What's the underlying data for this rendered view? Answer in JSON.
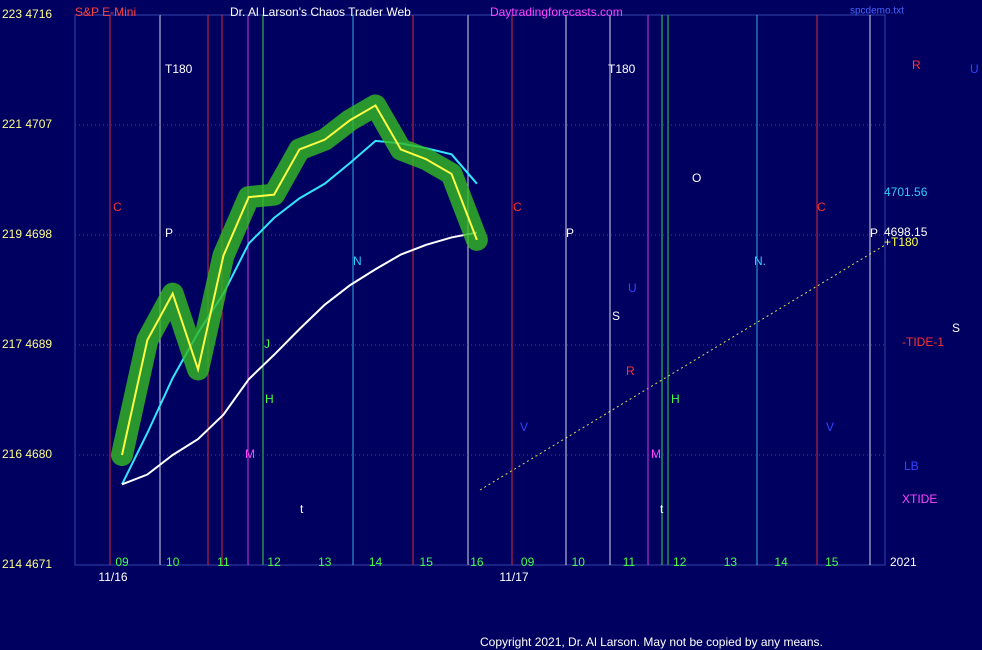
{
  "chart_data": {
    "type": "line",
    "symbol": "S&P E-Mini",
    "title": "Dr. Al Larson's Chaos Trader Web",
    "site": "Daytradingforecasts.com",
    "file": "spcdemo.txt",
    "copyright": "Copyright 2021, Dr. Al Larson. May not be copied by any means.",
    "dates": [
      "11/16",
      "11/17"
    ],
    "categories": [
      "09",
      null,
      "10",
      null,
      "11",
      null,
      "12",
      null,
      "13",
      null,
      "14",
      null,
      "15",
      null,
      "16",
      null,
      "09",
      null,
      "10",
      null,
      "11",
      null,
      "12",
      null,
      "13",
      null,
      "14",
      null,
      "15"
    ],
    "series": [
      {
        "color": "#ffff44",
        "values": [
          4680,
          4689.4,
          4693.2,
          4687,
          4696.3,
          4701.1,
          4701.3,
          4705,
          4705.8,
          4707.4,
          4708.6,
          4705,
          4704.2,
          4703,
          4697.6,
          null,
          null,
          null,
          null,
          null,
          null,
          null,
          null,
          null,
          null,
          null,
          null,
          null,
          null
        ]
      },
      {
        "color": "#33e6ff",
        "values": [
          4677.6,
          4681.8,
          4686.3,
          4690,
          4693.2,
          4697.3,
          4699.4,
          4701,
          4702.2,
          4703.9,
          4705.7,
          4705.5,
          4705.1,
          4704.6,
          4702.2,
          null,
          null,
          null,
          null,
          null,
          null,
          null,
          null,
          null,
          null,
          null,
          null,
          null,
          null
        ]
      },
      {
        "color": "#ffffff",
        "values": [
          4677.6,
          4678.4,
          4680,
          4681.3,
          4683.3,
          4686.2,
          4688.2,
          4690.3,
          4692.3,
          4693.9,
          4695.2,
          4696.4,
          4697.2,
          4697.8,
          4698.2,
          null,
          null,
          null,
          null,
          null,
          null,
          null,
          null,
          null,
          null,
          null,
          null,
          null,
          null
        ]
      }
    ],
    "ylim": [
      4671,
      4716
    ],
    "yticks": [
      {
        "value": 4671,
        "label": "214  4671"
      },
      {
        "value": 4680,
        "label": "216  4680"
      },
      {
        "value": 4689,
        "label": "217  4689"
      },
      {
        "value": 4698,
        "label": "219  4698"
      },
      {
        "value": 4707,
        "label": "221  4707"
      },
      {
        "value": 4716,
        "label": "223  4716"
      }
    ],
    "annotations": [
      "T180",
      "T180",
      "C",
      "C",
      "C",
      "P",
      "P",
      "P",
      "N",
      "N.",
      "O",
      "U",
      "S",
      "R",
      "H",
      "H",
      "M",
      "M",
      "V",
      "V",
      "J",
      "t",
      "t"
    ],
    "right_labels": [
      "R",
      "U",
      "4701.56",
      "4698.15",
      "+T180",
      "S",
      "-TIDE-1",
      "LB",
      "XTIDE",
      "2021"
    ]
  }
}
